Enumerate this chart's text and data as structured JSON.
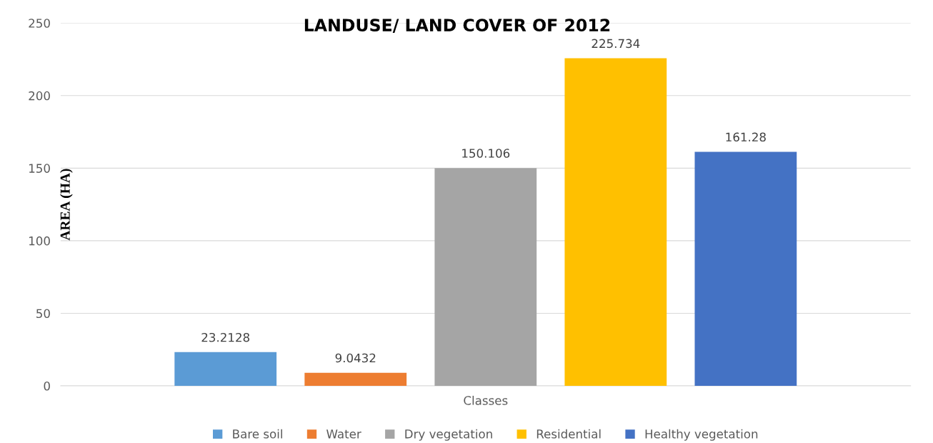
{
  "chart_data": {
    "type": "bar",
    "title": "LANDUSE/ LAND COVER OF 2012",
    "ylabel": "AREA (HA)",
    "categories": [
      "Classes"
    ],
    "series": [
      {
        "name": "Bare soil",
        "color": "#5b9bd5",
        "values": [
          23.2128
        ]
      },
      {
        "name": "Water",
        "color": "#ed7d31",
        "values": [
          9.0432
        ]
      },
      {
        "name": "Dry vegetation",
        "color": "#a5a5a5",
        "values": [
          150.106
        ]
      },
      {
        "name": "Residential",
        "color": "#ffc000",
        "values": [
          225.734
        ]
      },
      {
        "name": "Healthy vegetation",
        "color": "#4472c4",
        "values": [
          161.28
        ]
      }
    ],
    "ylim": [
      0,
      250
    ],
    "yticks": [
      0,
      50,
      100,
      150,
      200,
      250
    ],
    "grid": "y",
    "legend": "bottom",
    "data_labels": true
  }
}
